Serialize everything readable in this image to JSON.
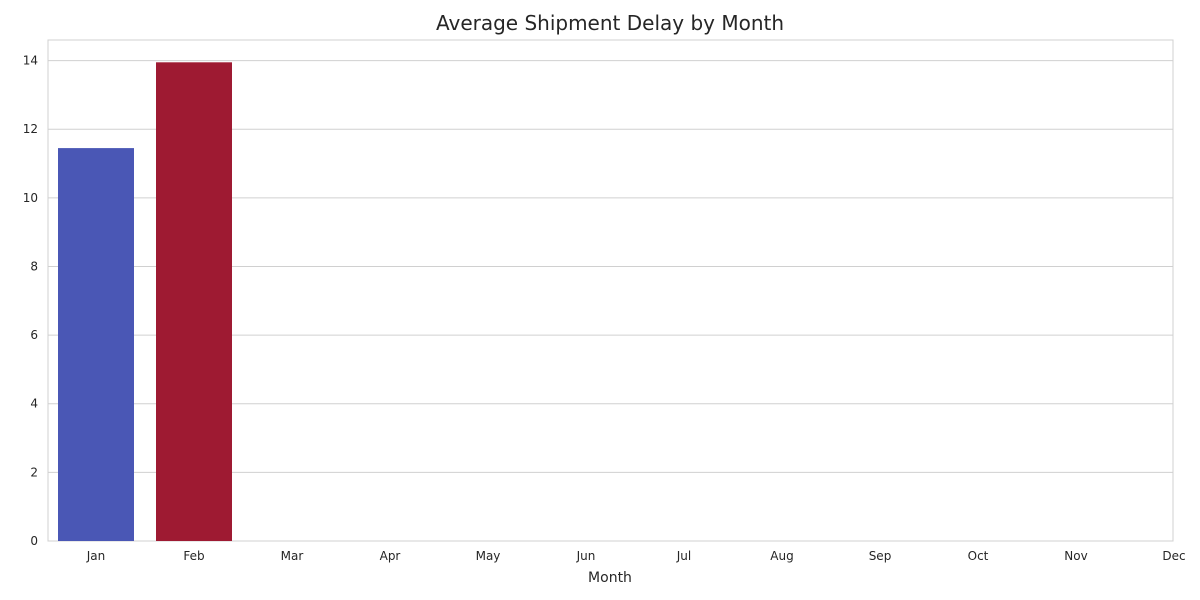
{
  "chart_data": {
    "type": "bar",
    "title": "Average Shipment Delay by Month",
    "xlabel": "Month",
    "ylabel": "",
    "categories": [
      "Jan",
      "Feb",
      "Mar",
      "Apr",
      "May",
      "Jun",
      "Jul",
      "Aug",
      "Sep",
      "Oct",
      "Nov",
      "Dec"
    ],
    "values": [
      11.45,
      13.95,
      null,
      null,
      null,
      null,
      null,
      null,
      null,
      null,
      null,
      null
    ],
    "bar_colors": [
      "#4a57b5",
      "#9e1a32"
    ],
    "ylim": [
      0,
      14.6
    ],
    "yticks": [
      0,
      2,
      4,
      6,
      8,
      10,
      12,
      14
    ],
    "grid": "horizontal",
    "legend": "none"
  }
}
